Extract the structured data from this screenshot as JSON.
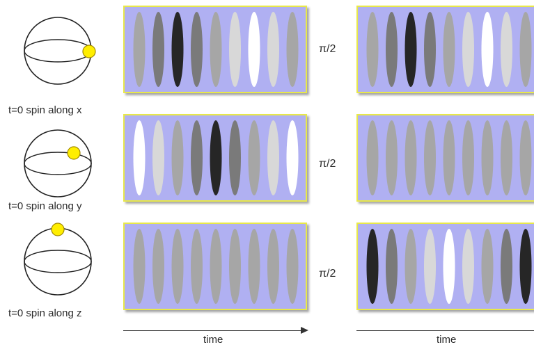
{
  "rows": [
    {
      "caption": "t=0 spin along x",
      "dot": "x",
      "pulse": "π/2",
      "left_shades": [
        "#a6a6a6",
        "#7a7a7a",
        "#262626",
        "#7a7a7a",
        "#a6a6a6",
        "#d8d8d8",
        "#ffffff",
        "#d8d8d8",
        "#a6a6a6"
      ],
      "right_shades": [
        "#a6a6a6",
        "#7a7a7a",
        "#262626",
        "#7a7a7a",
        "#a6a6a6",
        "#d8d8d8",
        "#ffffff",
        "#d8d8d8",
        "#a6a6a6"
      ]
    },
    {
      "caption": "t=0 spin along y",
      "dot": "y",
      "pulse": "π/2",
      "left_shades": [
        "#ffffff",
        "#d8d8d8",
        "#a6a6a6",
        "#7a7a7a",
        "#262626",
        "#7a7a7a",
        "#a6a6a6",
        "#d8d8d8",
        "#ffffff"
      ],
      "right_shades": [
        "#a6a6a6",
        "#a6a6a6",
        "#a6a6a6",
        "#a6a6a6",
        "#a6a6a6",
        "#a6a6a6",
        "#a6a6a6",
        "#a6a6a6",
        "#a6a6a6"
      ]
    },
    {
      "caption": "t=0 spin along z",
      "dot": "z",
      "pulse": "π/2",
      "left_shades": [
        "#a6a6a6",
        "#a6a6a6",
        "#a6a6a6",
        "#a6a6a6",
        "#a6a6a6",
        "#a6a6a6",
        "#a6a6a6",
        "#a6a6a6",
        "#a6a6a6"
      ],
      "right_shades": [
        "#262626",
        "#7a7a7a",
        "#a6a6a6",
        "#d8d8d8",
        "#ffffff",
        "#d8d8d8",
        "#a6a6a6",
        "#7a7a7a",
        "#262626"
      ]
    }
  ],
  "axes": {
    "left_label": "time",
    "right_label": "time"
  },
  "colors": {
    "panel_fill": "#b0b0f2",
    "panel_border": "#e8e84a",
    "spin_dot": "#ffee00"
  }
}
